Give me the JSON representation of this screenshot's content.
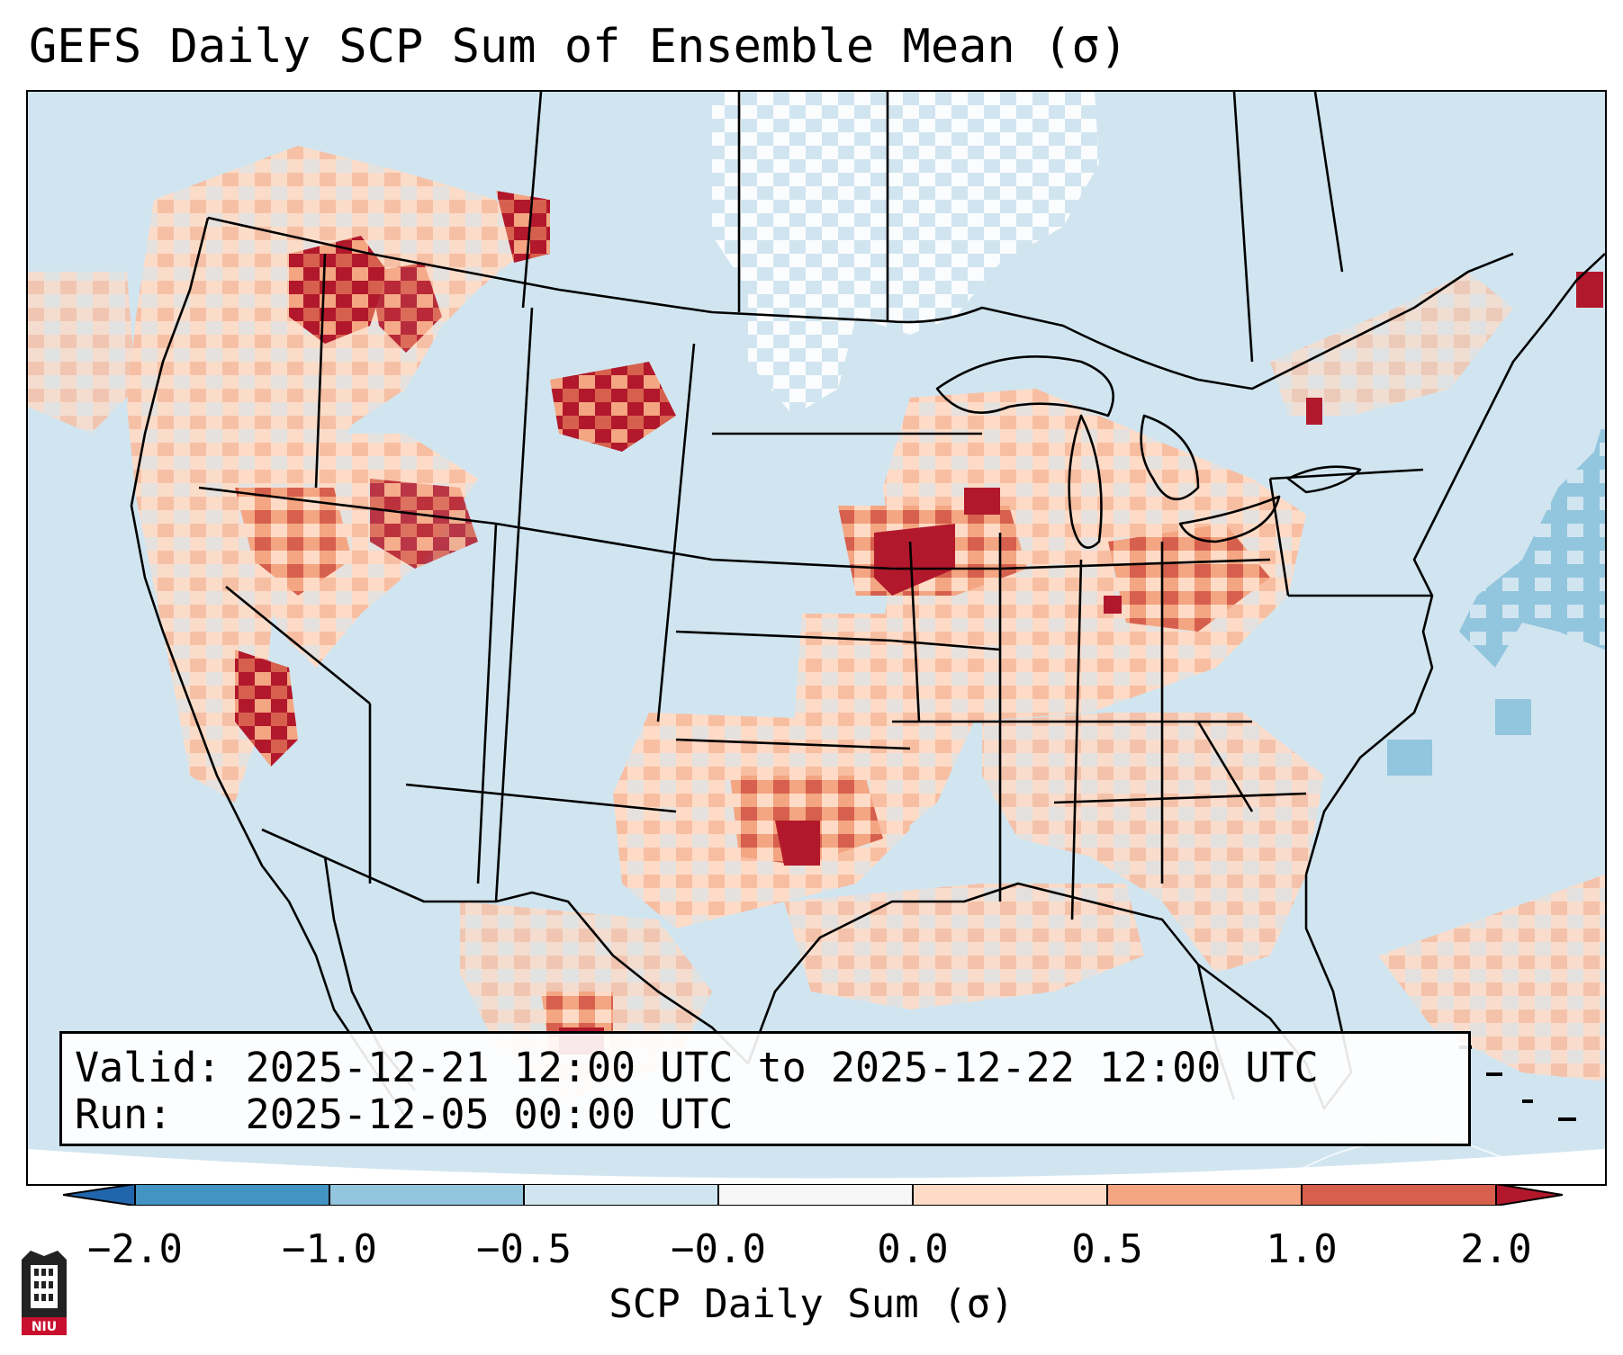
{
  "title": "GEFS Daily SCP Sum of Ensemble Mean (σ)",
  "valid_box": {
    "valid_line": "Valid: 2025-12-21 12:00 UTC to 2025-12-22 12:00 UTC",
    "run_line": "Run:   2025-12-05 00:00 UTC"
  },
  "colorbar": {
    "label": "SCP Daily Sum (σ)",
    "ticks": [
      "−2.0",
      "−1.0",
      "−0.5",
      "−0.0",
      "0.0",
      "0.5",
      "1.0",
      "2.0"
    ],
    "colors": [
      "#4393c3",
      "#92c5de",
      "#d1e5f0",
      "#f7f7f7",
      "#fddbc7",
      "#f4a582",
      "#d6604d"
    ],
    "extend_low_color": "#2166ac",
    "extend_high_color": "#b2182b"
  },
  "logo": {
    "text": "NIU"
  },
  "map": {
    "background_color": "#d1e5f0",
    "regions": [
      {
        "name": "pacific-northwest-high",
        "level": "very-high"
      },
      {
        "name": "montana-high",
        "level": "very-high"
      },
      {
        "name": "sierra-nevada-high",
        "level": "very-high"
      },
      {
        "name": "iowa-high",
        "level": "very-high"
      },
      {
        "name": "southern-oklahoma-high",
        "level": "very-high"
      },
      {
        "name": "ohio-valley-positive",
        "level": "positive"
      },
      {
        "name": "southeast-positive",
        "level": "positive"
      },
      {
        "name": "gulf-positive",
        "level": "positive"
      },
      {
        "name": "atlantic-negative",
        "level": "negative"
      },
      {
        "name": "north-plains-neutral",
        "level": "neutral"
      }
    ]
  }
}
